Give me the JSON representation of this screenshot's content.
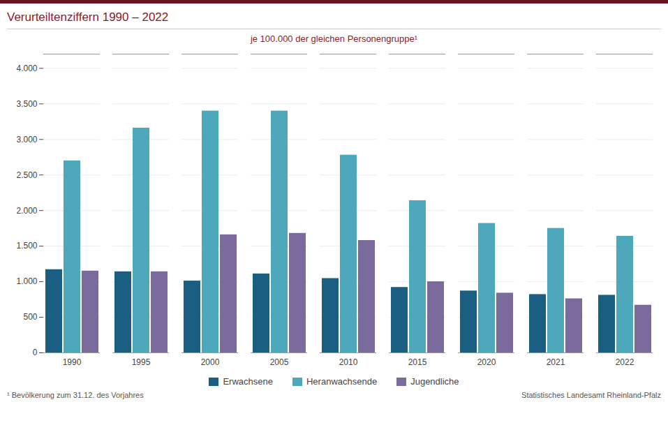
{
  "chart_data": {
    "type": "bar",
    "title": "Verurteiltenziffern 1990 – 2022",
    "subtitle": "je 100.000 der gleichen Personengruppe¹",
    "footnote": "¹ Bevölkerung  zum 31.12. des Vorjahres",
    "source": "Statistisches Landesamt Rheinland-Pfalz",
    "categories": [
      "1990",
      "1995",
      "2000",
      "2005",
      "2010",
      "2015",
      "2020",
      "2021",
      "2022"
    ],
    "series": [
      {
        "name": "Erwachsene",
        "color": "#1a5f82",
        "values": [
          1170,
          1140,
          1010,
          1110,
          1045,
          920,
          870,
          820,
          810
        ]
      },
      {
        "name": "Heranwachsende",
        "color": "#4da8bb",
        "values": [
          2700,
          3160,
          3400,
          3400,
          2780,
          2140,
          1820,
          1750,
          1640
        ]
      },
      {
        "name": "Jugendliche",
        "color": "#7b6b9d",
        "values": [
          1150,
          1140,
          1660,
          1680,
          1580,
          1000,
          840,
          760,
          670
        ]
      }
    ],
    "ylim": [
      0,
      4200
    ],
    "yticks": [
      0,
      500,
      {
        "value": 1000,
        "label": "1.000"
      },
      {
        "value": 1500,
        "label": "1.500"
      },
      {
        "value": 2000,
        "label": "2.000"
      },
      {
        "value": 2500,
        "label": "2.500"
      },
      {
        "value": 3000,
        "label": "3.000"
      },
      {
        "value": 3500,
        "label": "3.500"
      },
      {
        "value": 4000,
        "label": "4.000"
      }
    ],
    "grid": true,
    "legend": "bottom"
  }
}
